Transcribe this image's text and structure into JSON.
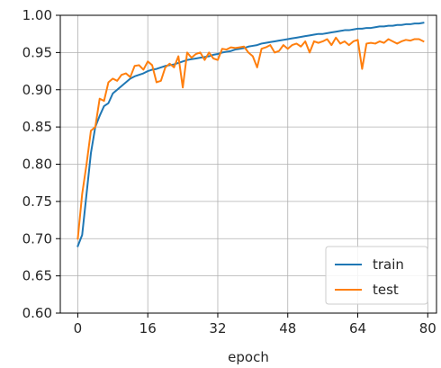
{
  "chart_data": {
    "type": "line",
    "xlabel": "epoch",
    "ylabel": "",
    "xlim": [
      -4,
      82
    ],
    "ylim": [
      0.6,
      1.0
    ],
    "xticks": [
      0,
      16,
      32,
      48,
      64,
      80
    ],
    "yticks": [
      0.6,
      0.65,
      0.7,
      0.75,
      0.8,
      0.85,
      0.9,
      0.95,
      1.0
    ],
    "xtick_labels": [
      "0",
      "16",
      "32",
      "48",
      "64",
      "80"
    ],
    "ytick_labels": [
      "0.60",
      "0.65",
      "0.70",
      "0.75",
      "0.80",
      "0.85",
      "0.90",
      "0.95",
      "1.00"
    ],
    "grid": true,
    "legend_position": "lower-right",
    "x": [
      0,
      1,
      2,
      3,
      4,
      5,
      6,
      7,
      8,
      9,
      10,
      11,
      12,
      13,
      14,
      15,
      16,
      17,
      18,
      19,
      20,
      21,
      22,
      23,
      24,
      25,
      26,
      27,
      28,
      29,
      30,
      31,
      32,
      33,
      34,
      35,
      36,
      37,
      38,
      39,
      40,
      41,
      42,
      43,
      44,
      45,
      46,
      47,
      48,
      49,
      50,
      51,
      52,
      53,
      54,
      55,
      56,
      57,
      58,
      59,
      60,
      61,
      62,
      63,
      64,
      65,
      66,
      67,
      68,
      69,
      70,
      71,
      72,
      73,
      74,
      75,
      76,
      77,
      78,
      79
    ],
    "series": [
      {
        "name": "train",
        "color": "#1f77b4",
        "values": [
          0.69,
          0.705,
          0.76,
          0.815,
          0.85,
          0.865,
          0.878,
          0.882,
          0.895,
          0.9,
          0.905,
          0.91,
          0.915,
          0.918,
          0.92,
          0.922,
          0.925,
          0.927,
          0.928,
          0.93,
          0.932,
          0.933,
          0.934,
          0.936,
          0.938,
          0.94,
          0.941,
          0.942,
          0.943,
          0.944,
          0.945,
          0.947,
          0.948,
          0.95,
          0.951,
          0.952,
          0.954,
          0.955,
          0.956,
          0.958,
          0.959,
          0.96,
          0.962,
          0.963,
          0.964,
          0.965,
          0.966,
          0.967,
          0.968,
          0.969,
          0.97,
          0.971,
          0.972,
          0.973,
          0.974,
          0.975,
          0.975,
          0.976,
          0.977,
          0.978,
          0.979,
          0.98,
          0.98,
          0.981,
          0.982,
          0.982,
          0.983,
          0.983,
          0.984,
          0.985,
          0.985,
          0.986,
          0.986,
          0.987,
          0.987,
          0.988,
          0.988,
          0.989,
          0.989,
          0.99
        ]
      },
      {
        "name": "test",
        "color": "#ff7f0e",
        "values": [
          0.7,
          0.76,
          0.8,
          0.845,
          0.85,
          0.888,
          0.885,
          0.91,
          0.915,
          0.912,
          0.92,
          0.922,
          0.917,
          0.932,
          0.933,
          0.927,
          0.938,
          0.933,
          0.91,
          0.912,
          0.93,
          0.935,
          0.93,
          0.945,
          0.903,
          0.95,
          0.943,
          0.948,
          0.95,
          0.94,
          0.95,
          0.942,
          0.94,
          0.955,
          0.954,
          0.957,
          0.956,
          0.957,
          0.958,
          0.95,
          0.945,
          0.93,
          0.955,
          0.957,
          0.96,
          0.95,
          0.952,
          0.96,
          0.955,
          0.96,
          0.962,
          0.958,
          0.965,
          0.95,
          0.965,
          0.963,
          0.965,
          0.968,
          0.96,
          0.97,
          0.962,
          0.965,
          0.96,
          0.965,
          0.967,
          0.928,
          0.962,
          0.963,
          0.962,
          0.965,
          0.963,
          0.968,
          0.965,
          0.962,
          0.965,
          0.967,
          0.966,
          0.968,
          0.968,
          0.965
        ]
      }
    ]
  }
}
